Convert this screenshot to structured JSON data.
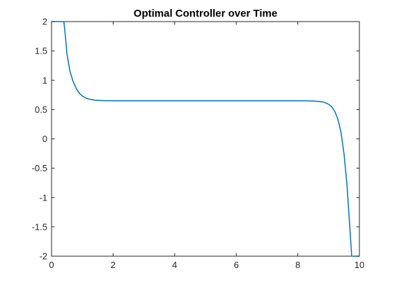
{
  "chart_data": {
    "type": "line",
    "title": "Optimal Controller over Time",
    "xlabel": "",
    "ylabel": "",
    "xlim": [
      0,
      10
    ],
    "ylim": [
      -2,
      2
    ],
    "grid": false,
    "x_ticks": [
      0,
      2,
      4,
      6,
      8,
      10
    ],
    "x_tick_labels": [
      "0",
      "2",
      "4",
      "6",
      "8",
      "10"
    ],
    "y_ticks": [
      2,
      1.5,
      1,
      0.5,
      0,
      -0.5,
      -1,
      -1.5,
      -2
    ],
    "y_tick_labels": [
      "2",
      "1.5",
      "1",
      "0.5",
      "0",
      "-0.5",
      "-1",
      "-1.5",
      "-2"
    ],
    "series": [
      {
        "color": "#0072bd",
        "x": [
          0,
          0.4,
          0.45,
          0.5,
          0.6,
          0.7,
          0.8,
          0.9,
          1.0,
          1.1,
          1.2,
          1.4,
          1.6,
          1.8,
          2.0,
          2.5,
          3,
          4,
          5,
          6,
          7,
          8,
          8.3,
          8.5,
          8.7,
          8.8,
          8.9,
          9.0,
          9.1,
          9.2,
          9.3,
          9.4,
          9.5,
          9.6,
          9.7,
          9.75,
          9.8,
          10
        ],
        "values": [
          2,
          2,
          1.75,
          1.45,
          1.15,
          0.98,
          0.86,
          0.78,
          0.73,
          0.7,
          0.68,
          0.66,
          0.655,
          0.652,
          0.65,
          0.65,
          0.65,
          0.65,
          0.65,
          0.65,
          0.65,
          0.65,
          0.648,
          0.645,
          0.638,
          0.63,
          0.615,
          0.59,
          0.55,
          0.47,
          0.34,
          0.12,
          -0.25,
          -0.8,
          -1.6,
          -2,
          -2,
          -2
        ]
      }
    ]
  }
}
